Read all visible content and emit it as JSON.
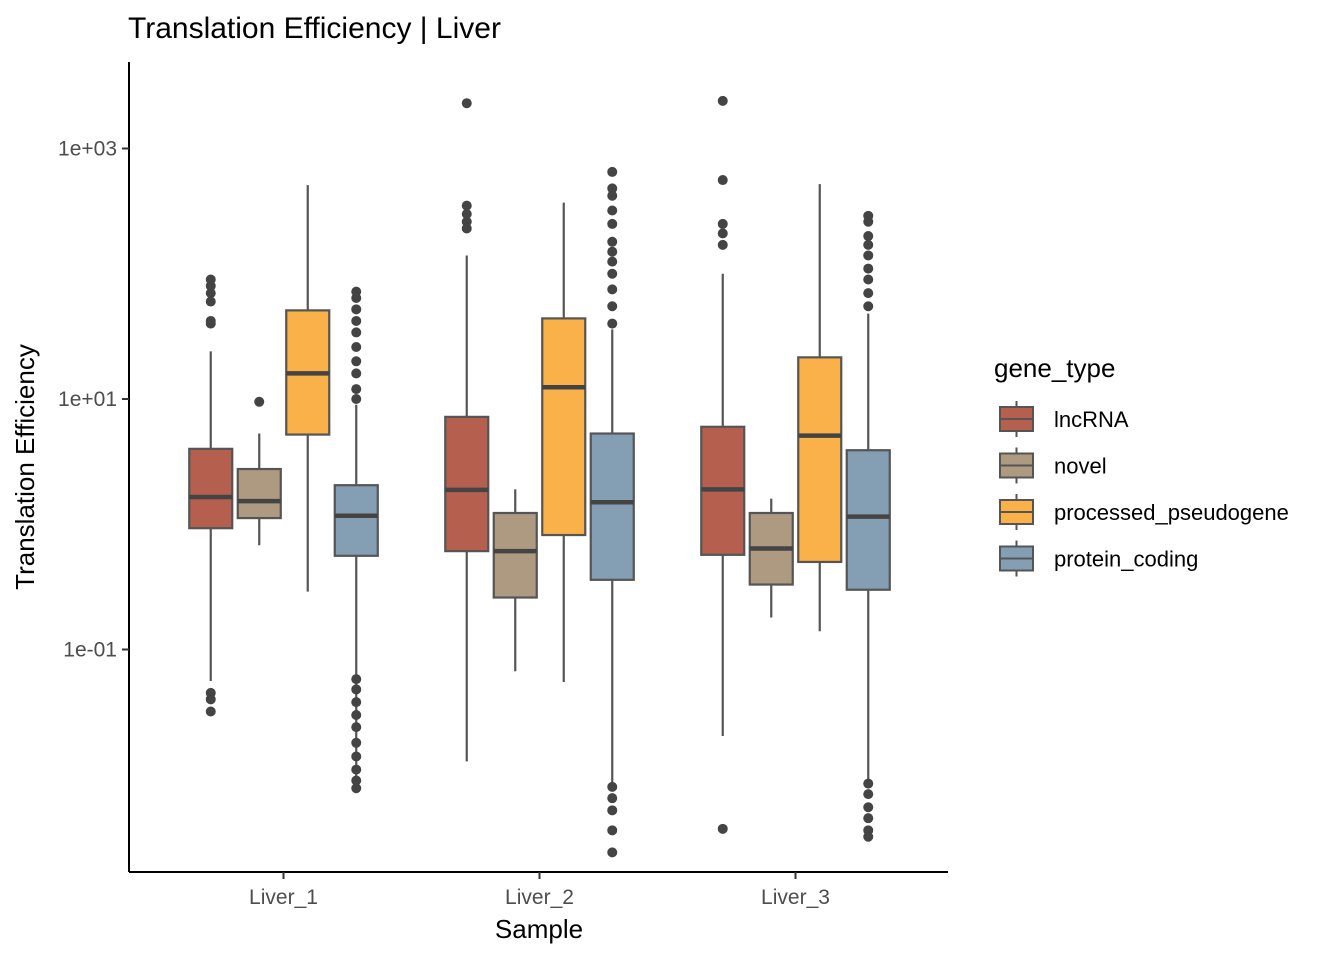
{
  "chart_data": {
    "type": "boxplot",
    "title": "Translation Efficiency | Liver",
    "xlabel": "Sample",
    "ylabel": "Translation Efficiency",
    "yscale": "log10",
    "ylim": [
      0.0009,
      4000
    ],
    "y_ticks": [
      0.1,
      10,
      1000
    ],
    "y_tick_labels": [
      "1e-01",
      "1e+01",
      "1e+03"
    ],
    "categories": [
      "Liver_1",
      "Liver_2",
      "Liver_3"
    ],
    "legend_title": "gene_type",
    "legend_position": "right",
    "grid": false,
    "series": [
      {
        "name": "lncRNA",
        "color": "#B5604F",
        "boxes": [
          {
            "category": "Liver_1",
            "min": 0.056,
            "q1": 0.93,
            "median": 1.65,
            "q3": 4.0,
            "max": 24,
            "outliers": [
              0.032,
              0.045,
              0.04,
              40,
              42,
              80,
              70,
              90,
              60
            ]
          },
          {
            "category": "Liver_2",
            "min": 0.0128,
            "q1": 0.61,
            "median": 1.88,
            "q3": 7.2,
            "max": 140,
            "outliers": [
              230,
              260,
              300,
              350,
              2300
            ]
          },
          {
            "category": "Liver_3",
            "min": 0.0204,
            "q1": 0.57,
            "median": 1.9,
            "q3": 6.0,
            "max": 100,
            "outliers": [
              0.0037,
              170,
              210,
              250,
              560,
              2400
            ]
          }
        ]
      },
      {
        "name": "novel",
        "color": "#AD9A81",
        "boxes": [
          {
            "category": "Liver_1",
            "min": 0.68,
            "q1": 1.12,
            "median": 1.53,
            "q3": 2.76,
            "max": 5.3,
            "outliers": [
              9.5
            ]
          },
          {
            "category": "Liver_2",
            "min": 0.067,
            "q1": 0.26,
            "median": 0.61,
            "q3": 1.23,
            "max": 1.9,
            "outliers": []
          },
          {
            "category": "Liver_3",
            "min": 0.18,
            "q1": 0.33,
            "median": 0.64,
            "q3": 1.23,
            "max": 1.6,
            "outliers": []
          }
        ]
      },
      {
        "name": "processed_pseudogene",
        "color": "#FAB149",
        "boxes": [
          {
            "category": "Liver_1",
            "min": 0.29,
            "q1": 5.2,
            "median": 16,
            "q3": 51,
            "max": 510,
            "outliers": []
          },
          {
            "category": "Liver_2",
            "min": 0.055,
            "q1": 0.82,
            "median": 12.4,
            "q3": 44,
            "max": 370,
            "outliers": []
          },
          {
            "category": "Liver_3",
            "min": 0.14,
            "q1": 0.5,
            "median": 5.1,
            "q3": 21.5,
            "max": 520,
            "outliers": []
          }
        ]
      },
      {
        "name": "protein_coding",
        "color": "#849EB3",
        "boxes": [
          {
            "category": "Liver_1",
            "min": 0.0078,
            "q1": 0.56,
            "median": 1.17,
            "q3": 2.05,
            "max": 9,
            "outliers": [
              0.0078,
              0.009,
              0.011,
              0.014,
              0.018,
              0.024,
              0.03,
              0.038,
              0.048,
              0.058,
              10,
              12,
              16,
              20,
              26,
              34,
              42,
              52,
              64,
              72
            ]
          },
          {
            "category": "Liver_2",
            "min": 0.0085,
            "q1": 0.36,
            "median": 1.5,
            "q3": 5.3,
            "max": 36,
            "outliers": [
              0.0024,
              0.0036,
              0.0052,
              0.0065,
              0.008,
              40,
              55,
              75,
              100,
              125,
              150,
              180,
              250,
              320,
              420,
              480,
              650
            ]
          },
          {
            "category": "Liver_3",
            "min": 0.0085,
            "q1": 0.3,
            "median": 1.15,
            "q3": 3.9,
            "max": 48,
            "outliers": [
              0.0032,
              0.0036,
              0.0045,
              0.0055,
              0.007,
              0.0085,
              55,
              70,
              90,
              110,
              140,
              170,
              200,
              260,
              290
            ]
          }
        ]
      }
    ]
  }
}
